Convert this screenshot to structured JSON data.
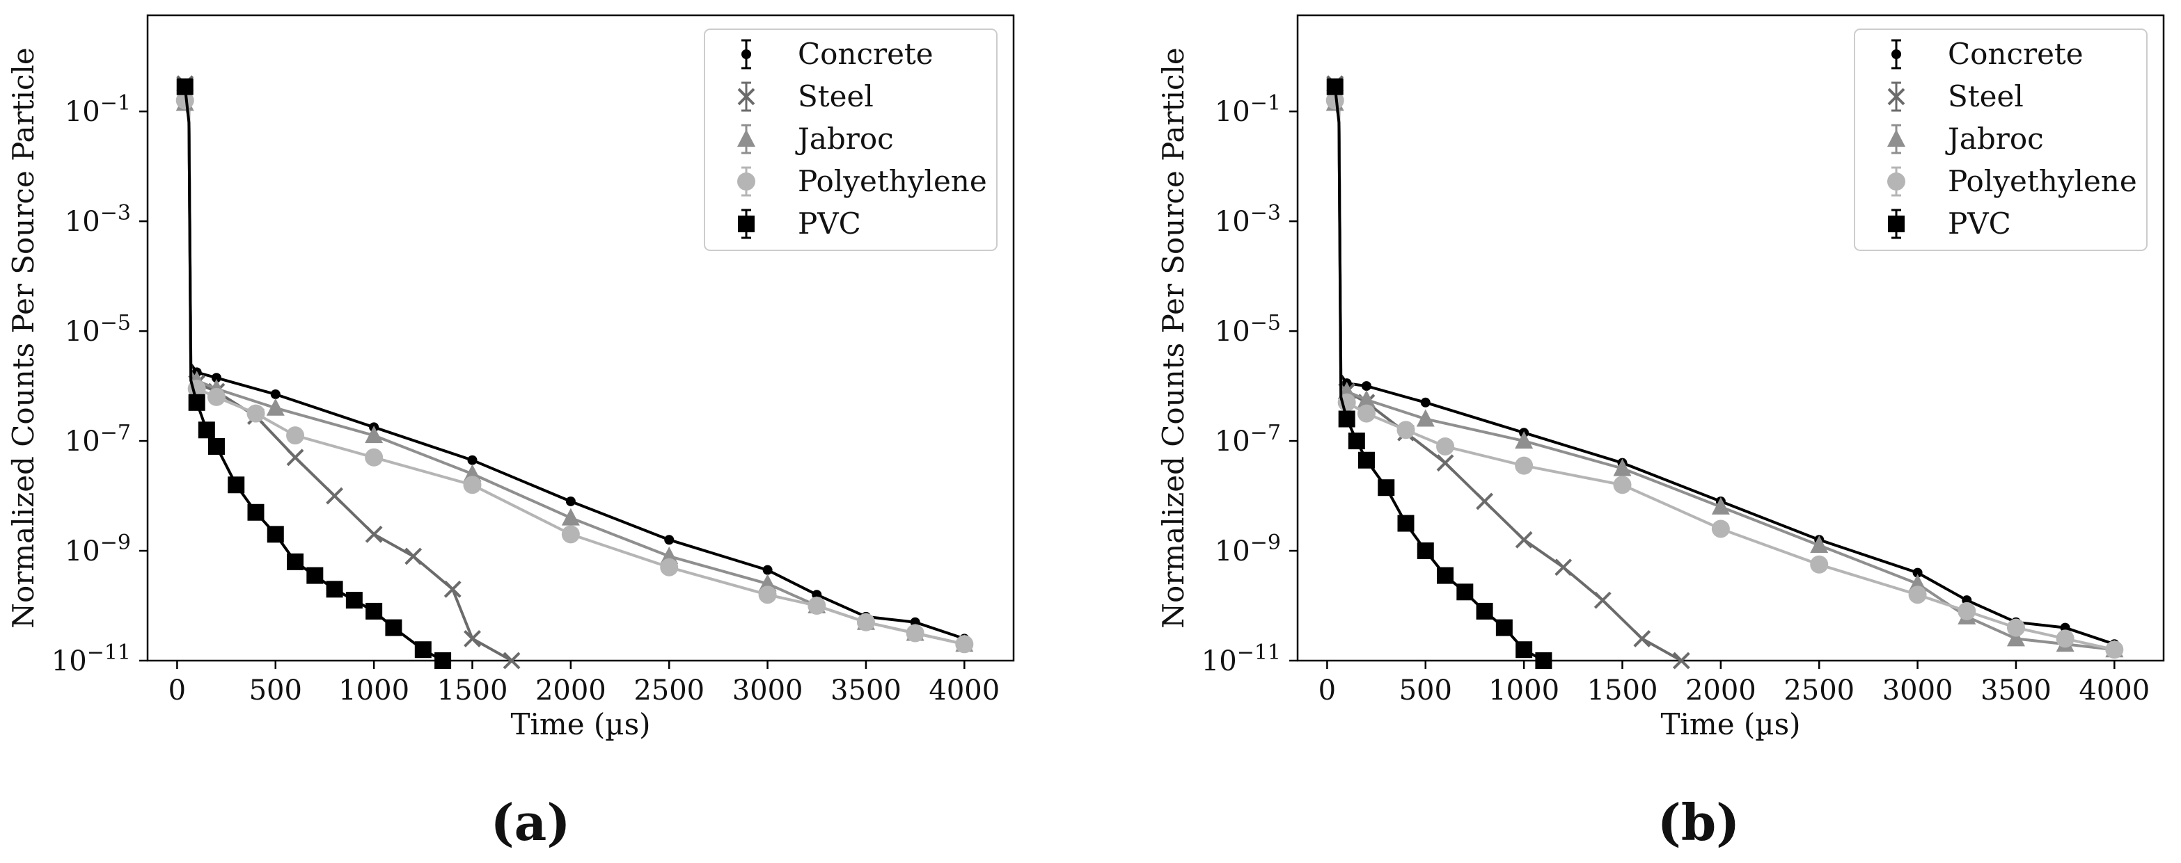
{
  "chart_data": [
    {
      "type": "line",
      "panel_label": "(a)",
      "xlabel": "Time (µs)",
      "ylabel": "Normalized Counts Per Source Particle",
      "xlim": [
        -150,
        4250
      ],
      "ylim_log10": [
        -11,
        0.75
      ],
      "xticks": [
        0,
        500,
        1000,
        1500,
        2000,
        2500,
        3000,
        3500,
        4000
      ],
      "xtick_labels": [
        "0",
        "500",
        "1000",
        "1500",
        "2000",
        "2500",
        "3000",
        "3500",
        "4000"
      ],
      "yticks_log10": [
        -1,
        -3,
        -5,
        -7,
        -9,
        -11
      ],
      "ytick_labels": [
        {
          "base": "10",
          "exp": "−1"
        },
        {
          "base": "10",
          "exp": "−3"
        },
        {
          "base": "10",
          "exp": "−5"
        },
        {
          "base": "10",
          "exp": "−7"
        },
        {
          "base": "10",
          "exp": "−9"
        },
        {
          "base": "10",
          "exp": "−11"
        }
      ],
      "legend_position": "top-right",
      "series": [
        {
          "name": "Concrete",
          "marker": "dot",
          "color": "#000000",
          "x": [
            40,
            60,
            70,
            100,
            200,
            500,
            1000,
            1500,
            2000,
            2500,
            3000,
            3250,
            3500,
            3750,
            4000
          ],
          "y_log10": [
            -0.7,
            -1.0,
            -5.6,
            -5.75,
            -5.85,
            -6.15,
            -6.75,
            -7.35,
            -8.1,
            -8.8,
            -9.35,
            -9.8,
            -10.2,
            -10.3,
            -10.6
          ]
        },
        {
          "name": "Steel",
          "marker": "x",
          "color": "#6b6b6b",
          "x": [
            40,
            60,
            70,
            100,
            200,
            400,
            600,
            800,
            1000,
            1200,
            1400,
            1500,
            1700
          ],
          "y_log10": [
            -0.5,
            -1.1,
            -5.8,
            -5.95,
            -6.1,
            -6.55,
            -7.3,
            -8.0,
            -8.7,
            -9.1,
            -9.7,
            -10.6,
            -11.0
          ]
        },
        {
          "name": "Jabroc",
          "marker": "triangle",
          "color": "#8f8f8f",
          "x": [
            40,
            60,
            70,
            100,
            200,
            500,
            1000,
            1500,
            2000,
            2500,
            3000,
            3250,
            3500,
            3750,
            4000
          ],
          "y_log10": [
            -0.85,
            -1.1,
            -5.75,
            -5.9,
            -6.05,
            -6.4,
            -6.9,
            -7.6,
            -8.4,
            -9.1,
            -9.6,
            -10.0,
            -10.3,
            -10.5,
            -10.7
          ]
        },
        {
          "name": "Polyethylene",
          "marker": "circle",
          "color": "#b5b5b5",
          "x": [
            40,
            60,
            70,
            100,
            200,
            400,
            600,
            1000,
            1500,
            2000,
            2500,
            3000,
            3250,
            3500,
            3750,
            4000
          ],
          "y_log10": [
            -0.8,
            -1.0,
            -5.9,
            -6.05,
            -6.2,
            -6.5,
            -6.9,
            -7.3,
            -7.8,
            -8.7,
            -9.3,
            -9.8,
            -10.0,
            -10.3,
            -10.5,
            -10.7
          ]
        },
        {
          "name": "PVC",
          "marker": "square",
          "color": "#000000",
          "x": [
            40,
            60,
            70,
            100,
            150,
            200,
            300,
            400,
            500,
            600,
            700,
            800,
            900,
            1000,
            1100,
            1250,
            1350
          ],
          "y_log10": [
            -0.55,
            -1.2,
            -5.9,
            -6.3,
            -6.8,
            -7.1,
            -7.8,
            -8.3,
            -8.7,
            -9.2,
            -9.45,
            -9.7,
            -9.9,
            -10.1,
            -10.4,
            -10.8,
            -11.0
          ]
        }
      ]
    },
    {
      "type": "line",
      "panel_label": "(b)",
      "xlabel": "Time (µs)",
      "ylabel": "Normalized Counts Per Source Particle",
      "xlim": [
        -150,
        4250
      ],
      "ylim_log10": [
        -11,
        0.75
      ],
      "xticks": [
        0,
        500,
        1000,
        1500,
        2000,
        2500,
        3000,
        3500,
        4000
      ],
      "xtick_labels": [
        "0",
        "500",
        "1000",
        "1500",
        "2000",
        "2500",
        "3000",
        "3500",
        "4000"
      ],
      "yticks_log10": [
        -1,
        -3,
        -5,
        -7,
        -9,
        -11
      ],
      "ytick_labels": [
        {
          "base": "10",
          "exp": "−1"
        },
        {
          "base": "10",
          "exp": "−3"
        },
        {
          "base": "10",
          "exp": "−5"
        },
        {
          "base": "10",
          "exp": "−7"
        },
        {
          "base": "10",
          "exp": "−9"
        },
        {
          "base": "10",
          "exp": "−11"
        }
      ],
      "legend_position": "top-right",
      "series": [
        {
          "name": "Concrete",
          "marker": "dot",
          "color": "#000000",
          "x": [
            40,
            60,
            70,
            100,
            200,
            500,
            1000,
            1500,
            2000,
            2500,
            3000,
            3250,
            3500,
            3750,
            4000
          ],
          "y_log10": [
            -0.7,
            -1.0,
            -5.8,
            -5.95,
            -6.0,
            -6.3,
            -6.85,
            -7.4,
            -8.1,
            -8.8,
            -9.4,
            -9.9,
            -10.3,
            -10.4,
            -10.7
          ]
        },
        {
          "name": "Steel",
          "marker": "x",
          "color": "#6b6b6b",
          "x": [
            40,
            60,
            70,
            100,
            200,
            400,
            600,
            800,
            1000,
            1200,
            1400,
            1600,
            1800
          ],
          "y_log10": [
            -0.5,
            -1.1,
            -6.0,
            -6.1,
            -6.3,
            -6.85,
            -7.4,
            -8.1,
            -8.8,
            -9.3,
            -9.9,
            -10.6,
            -11.0
          ]
        },
        {
          "name": "Jabroc",
          "marker": "triangle",
          "color": "#8f8f8f",
          "x": [
            40,
            60,
            70,
            100,
            200,
            500,
            1000,
            1500,
            2000,
            2500,
            3000,
            3250,
            3500,
            3750,
            4000
          ],
          "y_log10": [
            -0.85,
            -1.1,
            -6.0,
            -6.1,
            -6.25,
            -6.6,
            -7.0,
            -7.5,
            -8.2,
            -8.9,
            -9.6,
            -10.2,
            -10.6,
            -10.7,
            -10.8
          ]
        },
        {
          "name": "Polyethylene",
          "marker": "circle",
          "color": "#b5b5b5",
          "x": [
            40,
            60,
            70,
            100,
            200,
            400,
            600,
            1000,
            1500,
            2000,
            2500,
            3000,
            3250,
            3500,
            3750,
            4000
          ],
          "y_log10": [
            -0.8,
            -1.0,
            -6.2,
            -6.3,
            -6.5,
            -6.8,
            -7.1,
            -7.45,
            -7.8,
            -8.6,
            -9.25,
            -9.8,
            -10.1,
            -10.4,
            -10.6,
            -10.8
          ]
        },
        {
          "name": "PVC",
          "marker": "square",
          "color": "#000000",
          "x": [
            40,
            60,
            70,
            100,
            150,
            200,
            300,
            400,
            500,
            600,
            700,
            800,
            900,
            1000,
            1100
          ],
          "y_log10": [
            -0.55,
            -1.2,
            -6.2,
            -6.6,
            -7.0,
            -7.35,
            -7.85,
            -8.5,
            -9.0,
            -9.45,
            -9.75,
            -10.1,
            -10.4,
            -10.8,
            -11.0
          ]
        }
      ]
    }
  ]
}
